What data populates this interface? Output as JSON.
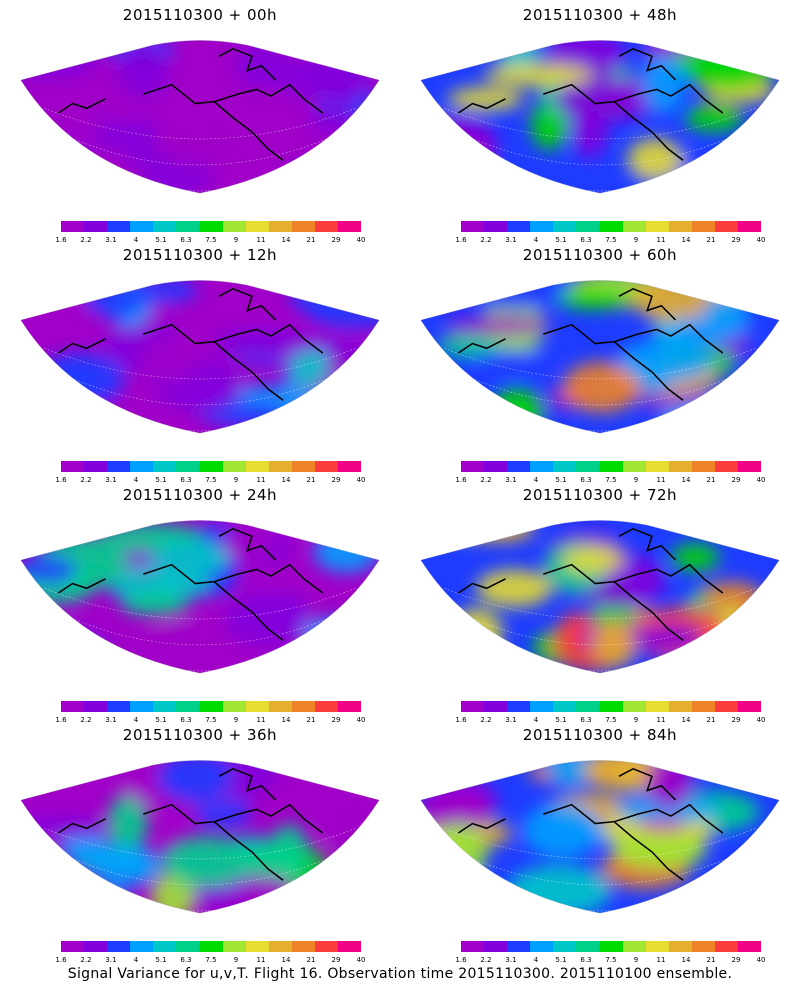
{
  "panels": [
    {
      "title": "2015110300 + 00h",
      "intensity": 0.15
    },
    {
      "title": "2015110300 + 48h",
      "intensity": 0.65
    },
    {
      "title": "2015110300 + 12h",
      "intensity": 0.3
    },
    {
      "title": "2015110300 + 60h",
      "intensity": 0.75
    },
    {
      "title": "2015110300 + 24h",
      "intensity": 0.4
    },
    {
      "title": "2015110300 + 72h",
      "intensity": 0.85
    },
    {
      "title": "2015110300 + 36h",
      "intensity": 0.5
    },
    {
      "title": "2015110300 + 84h",
      "intensity": 0.95
    }
  ],
  "colorbar": {
    "labels": [
      "1.6",
      "2.2",
      "3.1",
      "4",
      "5.1",
      "6.3",
      "7.5",
      "9",
      "11",
      "14",
      "21",
      "29",
      "40"
    ],
    "colors": [
      "#a000c8",
      "#8200dc",
      "#1e3cff",
      "#00a0ff",
      "#00c8c8",
      "#00d28c",
      "#00dc00",
      "#a0e632",
      "#e6dc32",
      "#e6af2d",
      "#f08228",
      "#fa3c3c",
      "#f00082"
    ]
  },
  "footer": "Signal Variance for u,v,T. Flight 16. Observation time 2015110300. 2015110100 ensemble."
}
